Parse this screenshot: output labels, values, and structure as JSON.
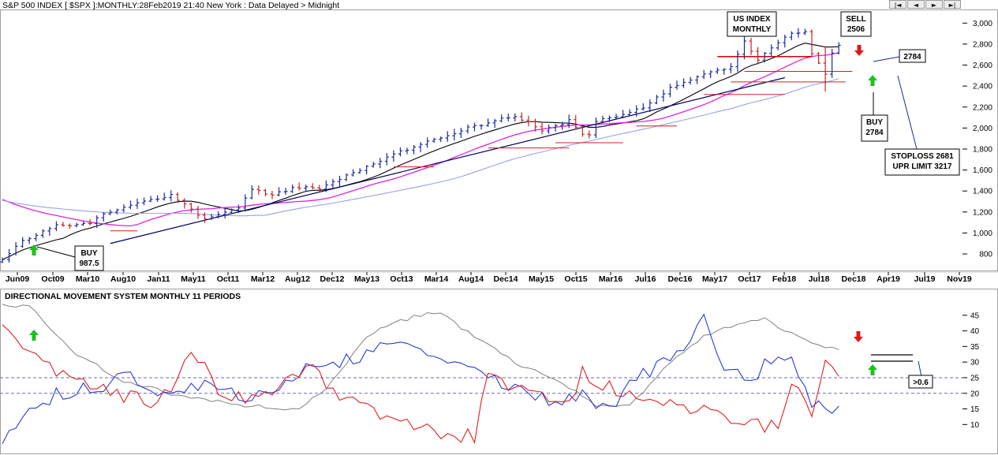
{
  "header": {
    "title": "S&P 500 INDEX [ $SPX ]:MONTHLY:28Feb2019 21:40 New York : Data Delayed > Midnight"
  },
  "nav_buttons": [
    {
      "name": "first-page-button",
      "glyph": "|◄"
    },
    {
      "name": "prev-button",
      "glyph": "◄"
    },
    {
      "name": "next-button",
      "glyph": "►"
    },
    {
      "name": "last-page-button",
      "glyph": "►|"
    }
  ],
  "chart_data": [
    {
      "type": "line",
      "title": "",
      "xlabel": "",
      "ylabel": "",
      "x_tick_labels": [
        "Jun09",
        "Oct09",
        "Mar10",
        "Aug10",
        "Jan11",
        "May11",
        "Oct11",
        "Mar12",
        "Aug12",
        "Dec12",
        "May13",
        "Oct13",
        "Mar14",
        "Aug14",
        "Dec14",
        "May15",
        "Oct15",
        "Mar16",
        "Jul16",
        "Dec16",
        "May17",
        "Oct17",
        "Feb18",
        "Jul18",
        "Dec18",
        "Apr19",
        "Jul19",
        "Nov19"
      ],
      "y_ticks": [
        800,
        1000,
        1200,
        1400,
        1600,
        1800,
        2000,
        2200,
        2400,
        2600,
        2800,
        3000
      ],
      "y_tick_labels": [
        "800",
        "1,000",
        "1,200",
        "1,400",
        "1,600",
        "1,800",
        "2,000",
        "2,200",
        "2,400",
        "2,600",
        "2,800",
        "3,000"
      ],
      "ylim": [
        650,
        3130
      ],
      "grid": false,
      "price_bars": [],
      "series": [
        {
          "color": "#000000",
          "style": "ma-short",
          "values": []
        },
        {
          "color": "#e020e0",
          "style": "ma-long",
          "values": []
        },
        {
          "color": "#9aa0e8",
          "style": "ma-longest",
          "values": []
        }
      ],
      "annotations": [
        {
          "label": "US INDEX\nMONTHLY"
        },
        {
          "label": "SELL\n2506"
        },
        {
          "label": "2784"
        },
        {
          "label": "BUY\n2784"
        },
        {
          "label": "STOPLOSS 2681\nUPR LIMIT 3217"
        },
        {
          "label": "BUY\n987.5"
        }
      ],
      "trendlines": [
        {
          "color": "#000060",
          "from": [
            16,
            900
          ],
          "to": [
            116,
            2480
          ]
        },
        {
          "color": "#d40000",
          "from": [
            106,
            2681
          ],
          "to": [
            120,
            2681
          ]
        }
      ]
    },
    {
      "type": "line",
      "title": "DIRECTIONAL MOVEMENT SYSTEM MONTHLY 11 PERIODS",
      "y_ticks": [
        10,
        15,
        20,
        25,
        30,
        35,
        40,
        45
      ],
      "y_tick_labels": [
        "10",
        "15",
        "20",
        "25",
        "30",
        "35",
        "40",
        "45"
      ],
      "ylim": [
        2,
        50
      ],
      "reference_lines": [
        20,
        25
      ],
      "series": [
        {
          "color": "#808080",
          "style": "adx",
          "values": []
        },
        {
          "color": "#2a3ad8",
          "style": "plus-di",
          "values": []
        },
        {
          "color": "#e02020",
          "style": "minus-di",
          "values": []
        }
      ],
      "annotations": [
        {
          "label": ">0.6"
        }
      ]
    }
  ]
}
